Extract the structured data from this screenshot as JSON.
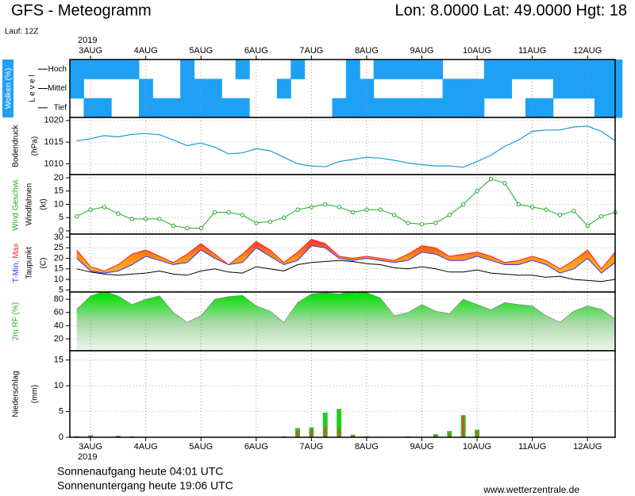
{
  "title": "GFS - Meteogramm",
  "location": "Lon: 8.0000 Lat: 49.0000 Hgt: 18",
  "run": "Lauf: 12Z",
  "time_axis": {
    "year": "2019",
    "xlim": [
      2.625,
      12.5
    ],
    "xticks": [
      {
        "value": 3,
        "label": "3AUG"
      },
      {
        "value": 4,
        "label": "4AUG"
      },
      {
        "value": 5,
        "label": "5AUG"
      },
      {
        "value": 6,
        "label": "6AUG"
      },
      {
        "value": 7,
        "label": "7AUG"
      },
      {
        "value": 8,
        "label": "8AUG"
      },
      {
        "value": 9,
        "label": "9AUG"
      },
      {
        "value": 10,
        "label": "10AUG"
      },
      {
        "value": 11,
        "label": "11AUG"
      },
      {
        "value": 12,
        "label": "12AUG"
      }
    ],
    "x": [
      2.75,
      3,
      3.25,
      3.5,
      3.75,
      4,
      4.25,
      4.5,
      4.75,
      5,
      5.25,
      5.5,
      5.75,
      6,
      6.25,
      6.5,
      6.75,
      7,
      7.25,
      7.5,
      7.75,
      8,
      8.25,
      8.5,
      8.75,
      9,
      9.25,
      9.5,
      9.75,
      10,
      10.25,
      10.5,
      10.75,
      11,
      11.25,
      11.5,
      11.75,
      12,
      12.25,
      12.5
    ]
  },
  "chart_data": [
    {
      "type": "heatmap",
      "ylabel": "Wolken (%)",
      "ylabel2": "L e v e l",
      "categories": [
        "Hoch",
        "Mittel",
        "Tief"
      ],
      "color": "#1ea0f5",
      "values": [
        [
          100,
          100,
          100,
          100,
          100,
          0,
          0,
          0,
          100,
          0,
          0,
          0,
          100,
          0,
          0,
          0,
          100,
          0,
          0,
          0,
          100,
          0,
          100,
          100,
          100,
          100,
          100,
          0,
          0,
          0,
          100,
          100,
          100,
          100,
          100,
          100,
          100,
          100,
          100,
          100
        ],
        [
          100,
          0,
          0,
          0,
          0,
          100,
          0,
          0,
          100,
          100,
          100,
          0,
          0,
          0,
          0,
          100,
          0,
          0,
          0,
          0,
          100,
          100,
          0,
          0,
          0,
          0,
          0,
          100,
          100,
          100,
          100,
          100,
          0,
          0,
          0,
          100,
          100,
          100,
          100,
          100
        ],
        [
          0,
          100,
          100,
          0,
          0,
          100,
          100,
          100,
          100,
          100,
          100,
          100,
          100,
          0,
          0,
          0,
          0,
          0,
          0,
          100,
          100,
          100,
          100,
          100,
          100,
          100,
          100,
          100,
          100,
          100,
          0,
          0,
          0,
          100,
          100,
          0,
          0,
          0,
          100,
          100
        ]
      ]
    },
    {
      "type": "line",
      "ylabel": "Bodendruck",
      "yunit": "(hPa)",
      "ylim": [
        1007.5,
        1020.7
      ],
      "yticks": [
        1010,
        1015,
        1020
      ],
      "color": "#1a9ad6",
      "grid": true,
      "values": [
        1015.3,
        1015.8,
        1016.5,
        1016.2,
        1016.8,
        1017.0,
        1016.7,
        1015.5,
        1014.2,
        1014.8,
        1013.8,
        1012.3,
        1012.5,
        1013.5,
        1013.0,
        1011.5,
        1010.0,
        1009.5,
        1009.3,
        1010.5,
        1011.0,
        1011.5,
        1011.3,
        1010.8,
        1010.2,
        1009.8,
        1009.5,
        1009.5,
        1009.2,
        1010.5,
        1012.0,
        1014.0,
        1015.5,
        1017.5,
        1017.8,
        1017.8,
        1018.5,
        1018.7,
        1017.5,
        1015.3
      ]
    },
    {
      "type": "line",
      "markers": true,
      "ylabel": "Wind Geschwi.",
      "ylabel2": "Windfahnen",
      "yunit": "(kt)",
      "ylim": [
        -1.2,
        21.2
      ],
      "yticks": [
        0,
        5,
        10,
        15,
        20
      ],
      "color": "#22aa22",
      "grid": true,
      "values": [
        5.5,
        8,
        9,
        6.5,
        4.5,
        4.5,
        4.5,
        2,
        1,
        1,
        7,
        7,
        6,
        3,
        3.5,
        5,
        8,
        9,
        10,
        9,
        7,
        8,
        8,
        6,
        3,
        2.5,
        3,
        6,
        10,
        15,
        19.5,
        18,
        10,
        9,
        8,
        6,
        7.5,
        2,
        5.5,
        7
      ]
    },
    {
      "type": "band",
      "ylabel2": "Taupunkt",
      "yunit": "(C)",
      "ylim": [
        4,
        31.5
      ],
      "yticks": [
        5,
        10,
        15,
        20,
        25,
        30
      ],
      "grid": true,
      "series": [
        {
          "name": "T-Min,",
          "color": "#3333ff",
          "values": [
            20,
            14,
            13,
            14,
            17,
            21,
            19,
            17,
            18,
            24,
            20,
            17,
            18,
            25,
            21,
            17,
            19,
            26,
            25,
            20,
            19,
            20,
            19,
            18,
            19,
            23,
            22,
            19,
            19,
            21,
            19,
            17,
            17,
            19,
            17,
            13,
            15,
            20,
            13,
            18
          ]
        },
        {
          "name": "Max",
          "color": "#ff2020",
          "values": [
            24,
            16,
            14,
            17,
            22,
            24,
            21,
            18,
            22,
            27,
            22,
            17,
            22,
            28,
            24,
            18,
            23,
            29,
            27,
            21,
            20,
            21,
            20,
            19,
            22,
            26,
            25,
            21,
            22,
            23,
            21,
            18,
            19,
            21,
            19,
            15,
            19,
            24,
            15,
            23
          ]
        },
        {
          "name": "Taupunkt",
          "color": "#000000",
          "values": [
            15,
            13.5,
            12.5,
            12,
            12.5,
            13,
            14,
            12.5,
            12,
            14,
            15,
            13.5,
            13,
            16,
            15,
            14,
            17,
            18,
            18.5,
            19,
            18.5,
            17.5,
            17,
            15.5,
            15,
            16,
            15,
            13.5,
            13.5,
            14.5,
            13,
            12.5,
            12,
            12,
            11,
            11.5,
            10,
            9.5,
            9,
            10
          ]
        }
      ]
    },
    {
      "type": "area",
      "ylabel": "2m RF (%)",
      "ylim": [
        2,
        91
      ],
      "yticks": [
        20,
        40,
        60,
        80
      ],
      "color": "#00dd00",
      "grid": true,
      "values": [
        65,
        85,
        92,
        85,
        72,
        80,
        85,
        60,
        45,
        55,
        80,
        84,
        86,
        70,
        62,
        45,
        75,
        88,
        90,
        88,
        92,
        90,
        82,
        55,
        60,
        72,
        62,
        58,
        80,
        72,
        64,
        75,
        72,
        70,
        55,
        45,
        62,
        70,
        65,
        50
      ]
    },
    {
      "type": "bar",
      "ylabel": "Niederschlag",
      "yunit": "(mm)",
      "ylim": [
        0,
        16.8
      ],
      "yticks": [
        0,
        5,
        10,
        15
      ],
      "grid": true,
      "series": [
        {
          "color": "#22cc22",
          "values": [
            0.2,
            0.4,
            0,
            0.3,
            0.2,
            0,
            0,
            0,
            0,
            0,
            0,
            0,
            0,
            0,
            0,
            0.2,
            1.8,
            1.9,
            4.8,
            5.5,
            0.5,
            0.2,
            0.1,
            0,
            0.2,
            0,
            0.6,
            1.2,
            4.3,
            1.5,
            0,
            0,
            0,
            0,
            0,
            0,
            0,
            0,
            0,
            0
          ]
        },
        {
          "color": "#cc5522",
          "values": [
            0.2,
            0.3,
            0,
            0.2,
            0,
            0,
            0,
            0,
            0,
            0,
            0,
            0,
            0,
            0,
            0,
            0,
            1.4,
            1.6,
            2.0,
            1.7,
            0.3,
            0,
            0,
            0,
            0,
            0,
            0.4,
            0.7,
            4.0,
            1.3,
            0,
            0,
            0,
            0,
            0,
            0,
            0,
            0,
            0,
            0
          ]
        }
      ]
    }
  ],
  "sunrise": "Sonnenaufgang heute 04:01 UTC",
  "sunset": "Sonnenuntergang heute 19:06 UTC",
  "source": "www.wetterzentrale.de"
}
